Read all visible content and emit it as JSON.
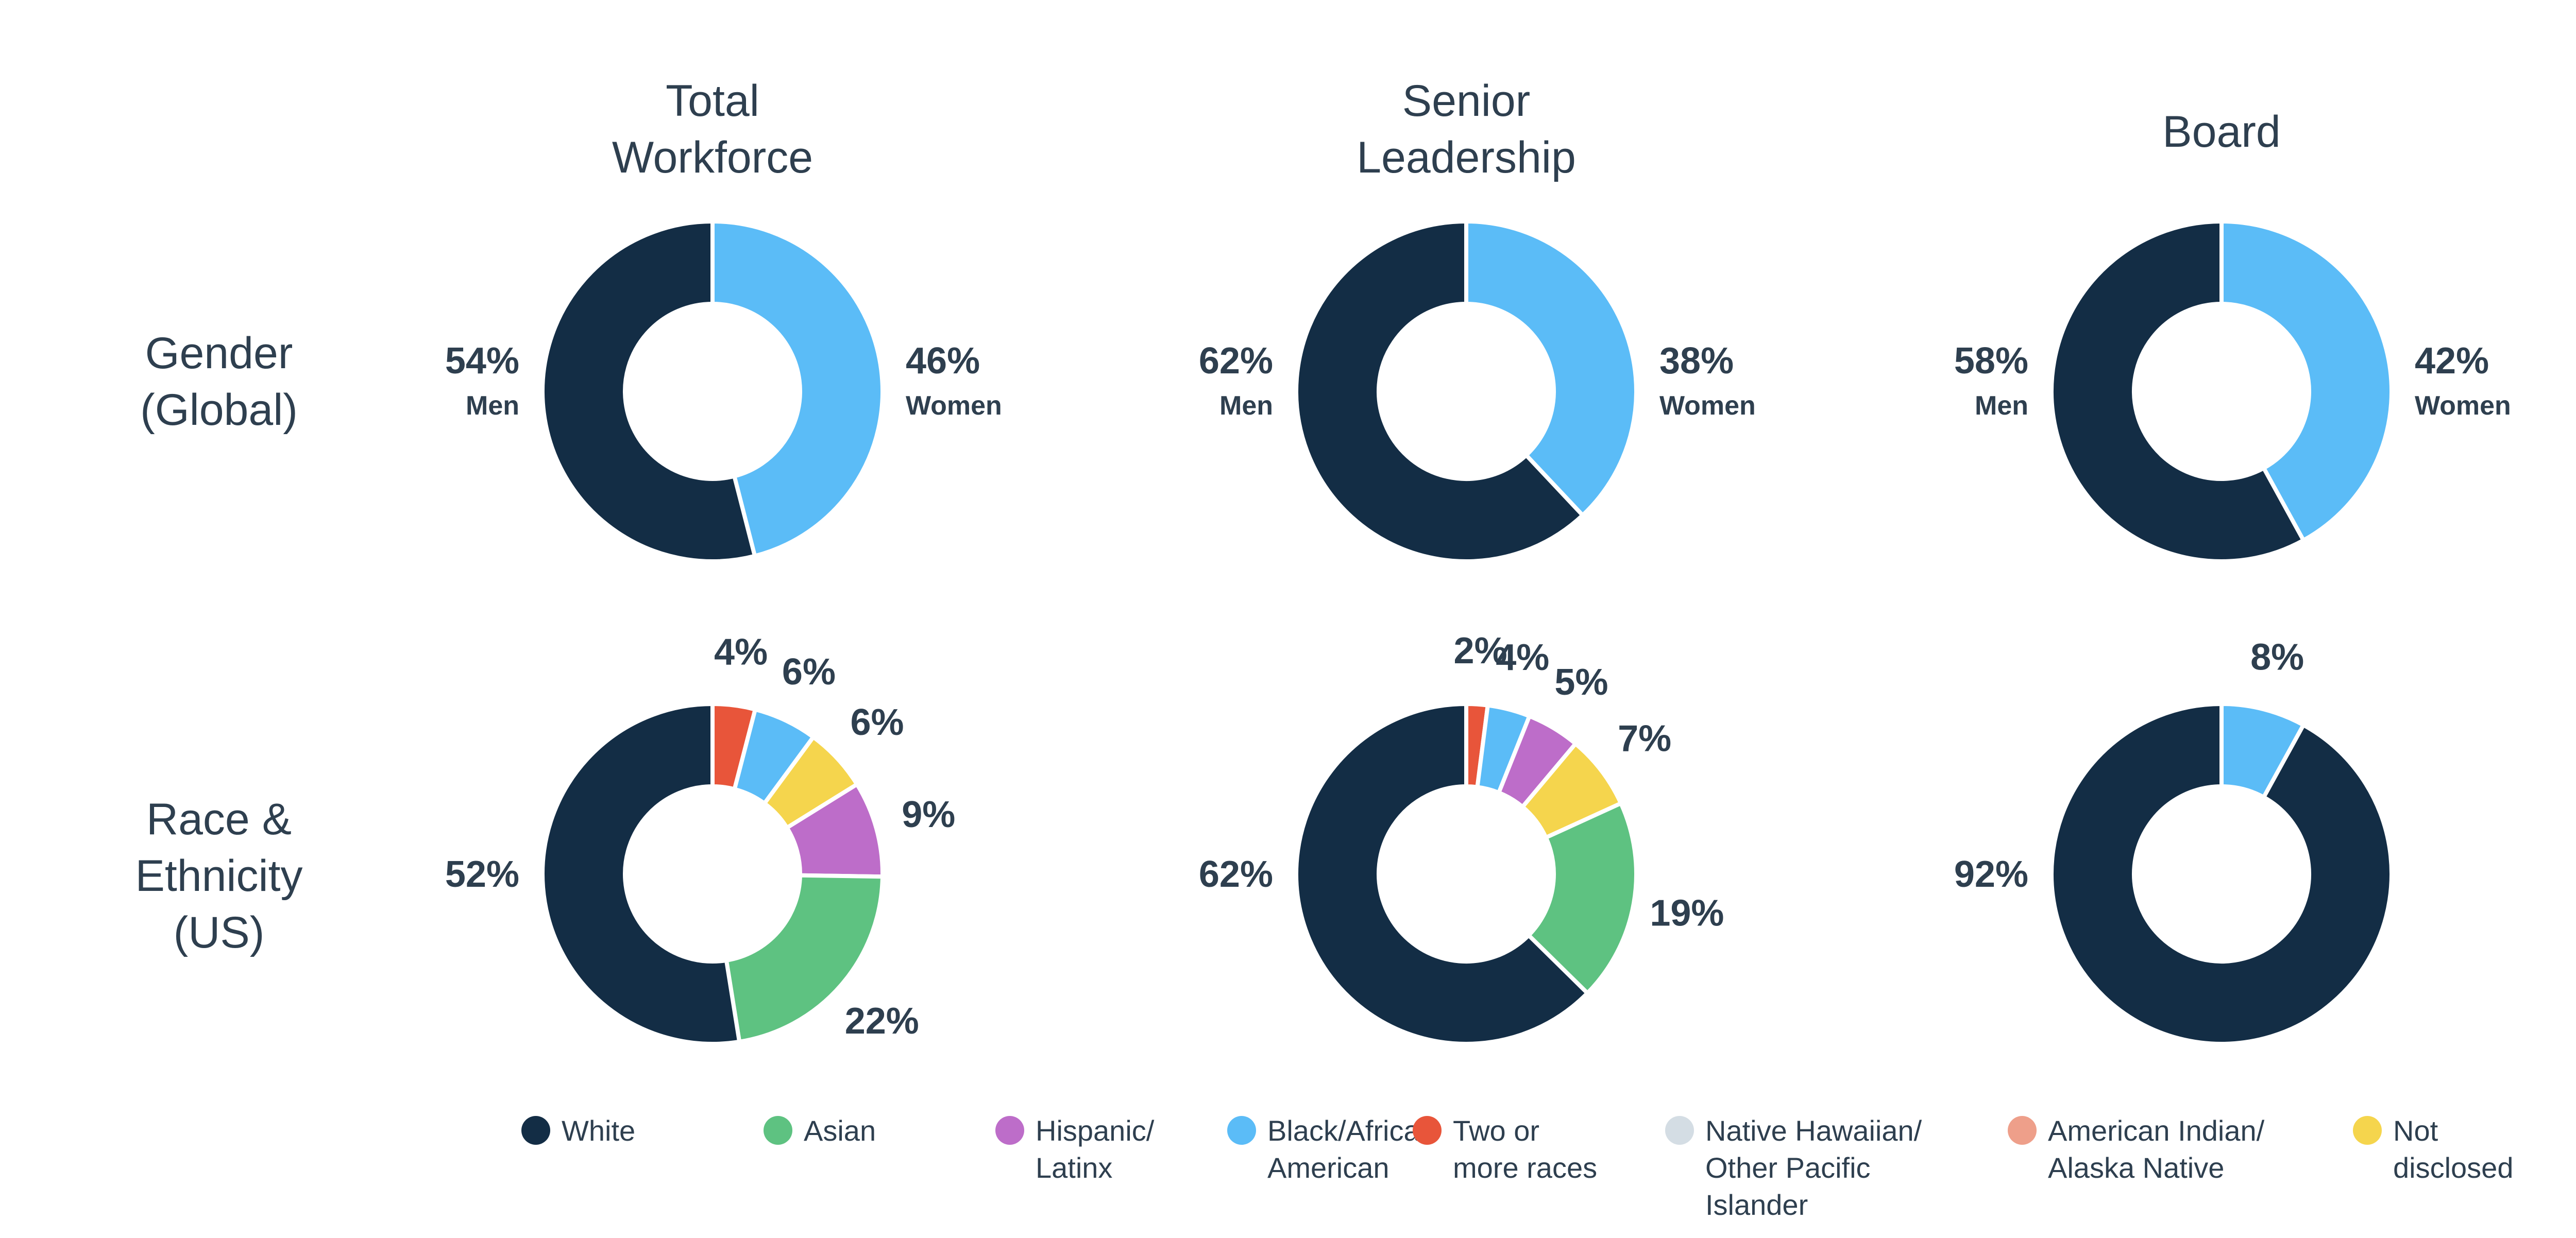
{
  "colors": {
    "White": "#132d45",
    "Asian": "#5ec281",
    "Hispanic": "#bd6dc9",
    "Black": "#5bbcf7",
    "TwoOrMore": "#e8553a",
    "NativeHawaiian": "#d4dde4",
    "AmericanIndian": "#ee9f8a",
    "NotDisclosed": "#f5d54d",
    "Men": "#132d45",
    "Women": "#5bbcf7",
    "text": "#2e3f4f"
  },
  "columns": [
    {
      "title_lines": [
        "Total",
        "Workforce"
      ]
    },
    {
      "title_lines": [
        "Senior",
        "Leadership"
      ]
    },
    {
      "title_lines": [
        "Board"
      ]
    }
  ],
  "rows": [
    {
      "title_lines": [
        "Gender",
        "(Global)"
      ]
    },
    {
      "title_lines": [
        "Race &",
        "Ethnicity",
        "(US)"
      ]
    }
  ],
  "legend": [
    {
      "key": "White",
      "lines": [
        "White"
      ]
    },
    {
      "key": "Asian",
      "lines": [
        "Asian"
      ]
    },
    {
      "key": "Hispanic",
      "lines": [
        "Hispanic/",
        "Latinx"
      ]
    },
    {
      "key": "Black",
      "lines": [
        "Black/African",
        "American"
      ]
    },
    {
      "key": "TwoOrMore",
      "lines": [
        "Two or",
        "more races"
      ]
    },
    {
      "key": "NativeHawaiian",
      "lines": [
        "Native Hawaiian/",
        "Other Pacific",
        "Islander"
      ]
    },
    {
      "key": "AmericanIndian",
      "lines": [
        "American Indian/",
        "Alaska Native"
      ]
    },
    {
      "key": "NotDisclosed",
      "lines": [
        "Not",
        "disclosed"
      ]
    }
  ],
  "chart_data": [
    {
      "type": "pie",
      "title": "Total Workforce — Gender (Global)",
      "slices": [
        {
          "key": "Women",
          "value": 46,
          "label": "46%",
          "sublabel": "Women"
        },
        {
          "key": "Men",
          "value": 54,
          "label": "54%",
          "sublabel": "Men"
        }
      ]
    },
    {
      "type": "pie",
      "title": "Senior Leadership — Gender (Global)",
      "slices": [
        {
          "key": "Women",
          "value": 38,
          "label": "38%",
          "sublabel": "Women"
        },
        {
          "key": "Men",
          "value": 62,
          "label": "62%",
          "sublabel": "Men"
        }
      ]
    },
    {
      "type": "pie",
      "title": "Board — Gender (Global)",
      "slices": [
        {
          "key": "Women",
          "value": 42,
          "label": "42%",
          "sublabel": "Women"
        },
        {
          "key": "Men",
          "value": 58,
          "label": "58%",
          "sublabel": "Men"
        }
      ]
    },
    {
      "type": "pie",
      "title": "Total Workforce — Race & Ethnicity (US)",
      "slices": [
        {
          "key": "TwoOrMore",
          "value": 4,
          "label": "4%"
        },
        {
          "key": "Black",
          "value": 6,
          "label": "6%"
        },
        {
          "key": "NotDisclosed",
          "value": 6,
          "label": "6%"
        },
        {
          "key": "Hispanic",
          "value": 9,
          "label": "9%"
        },
        {
          "key": "Asian",
          "value": 22,
          "label": "22%"
        },
        {
          "key": "White",
          "value": 52,
          "label": "52%"
        }
      ]
    },
    {
      "type": "pie",
      "title": "Senior Leadership — Race & Ethnicity (US)",
      "slices": [
        {
          "key": "TwoOrMore",
          "value": 2,
          "label": "2%"
        },
        {
          "key": "Black",
          "value": 4,
          "label": "4%"
        },
        {
          "key": "Hispanic",
          "value": 5,
          "label": "5%"
        },
        {
          "key": "NotDisclosed",
          "value": 7,
          "label": "7%"
        },
        {
          "key": "Asian",
          "value": 19,
          "label": "19%"
        },
        {
          "key": "White",
          "value": 62,
          "label": "62%"
        }
      ]
    },
    {
      "type": "pie",
      "title": "Board — Race & Ethnicity (US)",
      "slices": [
        {
          "key": "Black",
          "value": 8,
          "label": "8%"
        },
        {
          "key": "White",
          "value": 92,
          "label": "92%"
        }
      ]
    }
  ]
}
